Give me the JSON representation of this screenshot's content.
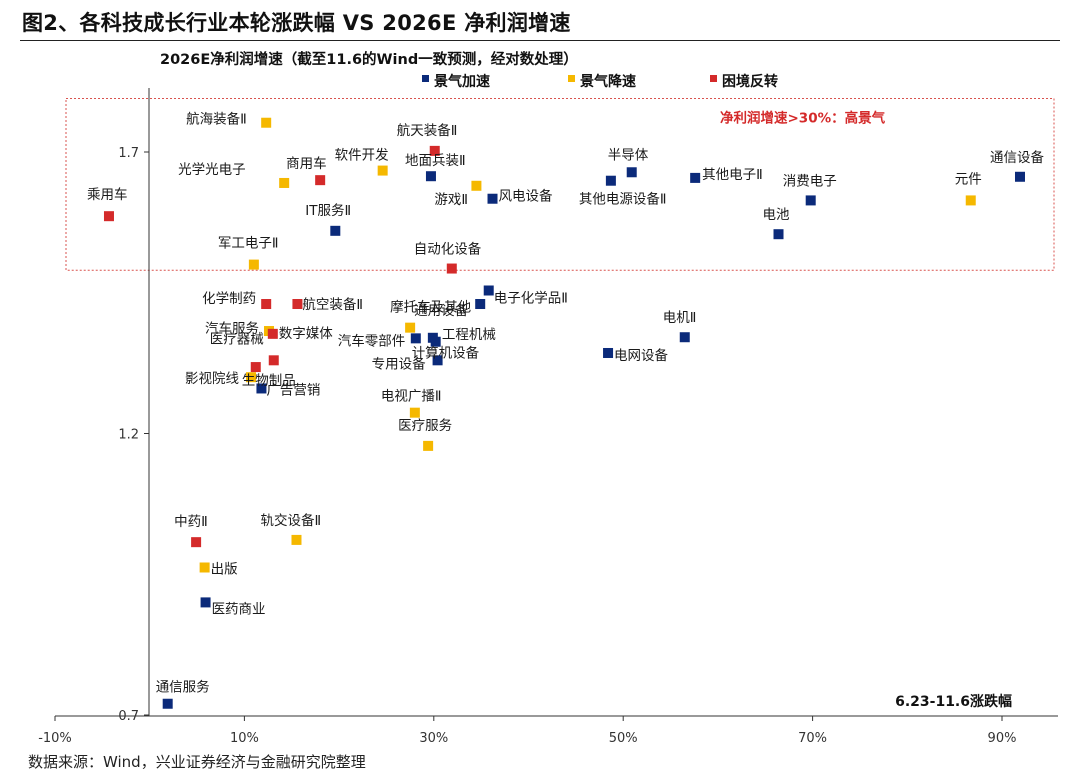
{
  "title": "图2、各科技成长行业本轮涨跌幅  VS 2026E 净利润增速",
  "source": "数据来源：Wind，兴业证券经济与金融研究院整理",
  "chart_data": {
    "type": "scatter",
    "subtitle": "2026E净利润增速（截至11.6的Wind一致预测，经对数处理）",
    "xlabel": "6.23-11.6涨跌幅",
    "ylabel": "",
    "x_unit": "%",
    "xlim": [
      -10,
      95
    ],
    "ylim": [
      0.7,
      1.85
    ],
    "x_ticks": [
      -10,
      10,
      30,
      50,
      70,
      90
    ],
    "x_tick_labels": [
      "-10%",
      "10%",
      "30%",
      "50%",
      "70%",
      "90%"
    ],
    "y_ticks": [
      0.7,
      1.2,
      1.7
    ],
    "y_tick_labels": [
      "0.7",
      "1.2",
      "1.7"
    ],
    "grid": false,
    "legend_position": "top",
    "colors": {
      "景气加速": "#0b2a7a",
      "景气降速": "#f5b800",
      "困境反转": "#d42a2a"
    },
    "highlight_region": {
      "label": "净利润增速>30%：高景气",
      "y_range": [
        1.49,
        1.795
      ]
    },
    "series": [
      {
        "name": "景气加速",
        "points": [
          {
            "label": "通信设备",
            "x": 91.9,
            "y": 1.656
          },
          {
            "label": "半导体",
            "x": 50.9,
            "y": 1.664
          },
          {
            "label": "其他电子Ⅱ",
            "x": 57.6,
            "y": 1.654
          },
          {
            "label": "其他电源设备Ⅱ",
            "x": 48.7,
            "y": 1.649
          },
          {
            "label": "消费电子",
            "x": 69.8,
            "y": 1.614
          },
          {
            "label": "电池",
            "x": 66.4,
            "y": 1.554
          },
          {
            "label": "地面兵装Ⅱ",
            "x": 29.7,
            "y": 1.657
          },
          {
            "label": "风电设备",
            "x": 36.2,
            "y": 1.617
          },
          {
            "label": "IT服务Ⅱ",
            "x": 19.6,
            "y": 1.56
          },
          {
            "label": "电子化学品Ⅱ",
            "x": 35.8,
            "y": 1.454
          },
          {
            "label": "通用设备",
            "x": 34.9,
            "y": 1.43
          },
          {
            "label": "电机Ⅱ",
            "x": 56.5,
            "y": 1.371
          },
          {
            "label": "电网设备",
            "x": 48.4,
            "y": 1.343
          },
          {
            "label": "汽车零部件",
            "x": 28.1,
            "y": 1.369
          },
          {
            "label": "工程机械",
            "x": 29.9,
            "y": 1.37
          },
          {
            "label": "计算机设备",
            "x": 30.2,
            "y": 1.363
          },
          {
            "label": "专用设备",
            "x": 30.4,
            "y": 1.33
          },
          {
            "label": "广告营销",
            "x": 11.8,
            "y": 1.28
          },
          {
            "label": "医药商业",
            "x": 5.9,
            "y": 0.9
          },
          {
            "label": "通信服务",
            "x": 1.9,
            "y": 0.72
          }
        ]
      },
      {
        "name": "景气降速",
        "points": [
          {
            "label": "航海装备Ⅱ",
            "x": 12.3,
            "y": 1.752
          },
          {
            "label": "光学光电子",
            "x": 14.2,
            "y": 1.645
          },
          {
            "label": "软件开发",
            "x": 24.6,
            "y": 1.667
          },
          {
            "label": "游戏Ⅱ",
            "x": 34.5,
            "y": 1.64
          },
          {
            "label": "元件",
            "x": 86.7,
            "y": 1.614
          },
          {
            "label": "军工电子Ⅱ",
            "x": 11.0,
            "y": 1.5
          },
          {
            "label": "汽车服务",
            "x": 12.6,
            "y": 1.382
          },
          {
            "label": "摩托车及其他",
            "x": 27.5,
            "y": 1.388
          },
          {
            "label": "影视院线",
            "x": 10.7,
            "y": 1.3
          },
          {
            "label": "电视广播Ⅱ",
            "x": 28.0,
            "y": 1.237
          },
          {
            "label": "医疗服务",
            "x": 29.4,
            "y": 1.178
          },
          {
            "label": "轨交设备Ⅱ",
            "x": 15.5,
            "y": 1.011
          },
          {
            "label": "出版",
            "x": 5.8,
            "y": 0.962
          }
        ]
      },
      {
        "name": "困境反转",
        "points": [
          {
            "label": "乘用车",
            "x": -4.3,
            "y": 1.586
          },
          {
            "label": "商用车",
            "x": 18.0,
            "y": 1.65
          },
          {
            "label": "航天装备Ⅱ",
            "x": 30.1,
            "y": 1.702
          },
          {
            "label": "自动化设备",
            "x": 31.9,
            "y": 1.493
          },
          {
            "label": "化学制药",
            "x": 12.3,
            "y": 1.43
          },
          {
            "label": "航空装备Ⅱ",
            "x": 15.6,
            "y": 1.43
          },
          {
            "label": "数字媒体",
            "x": 13.0,
            "y": 1.377
          },
          {
            "label": "医疗器械",
            "x": 13.1,
            "y": 1.33
          },
          {
            "label": "生物制品",
            "x": 11.2,
            "y": 1.318
          },
          {
            "label": "中药Ⅱ",
            "x": 4.9,
            "y": 1.007
          }
        ]
      }
    ]
  }
}
